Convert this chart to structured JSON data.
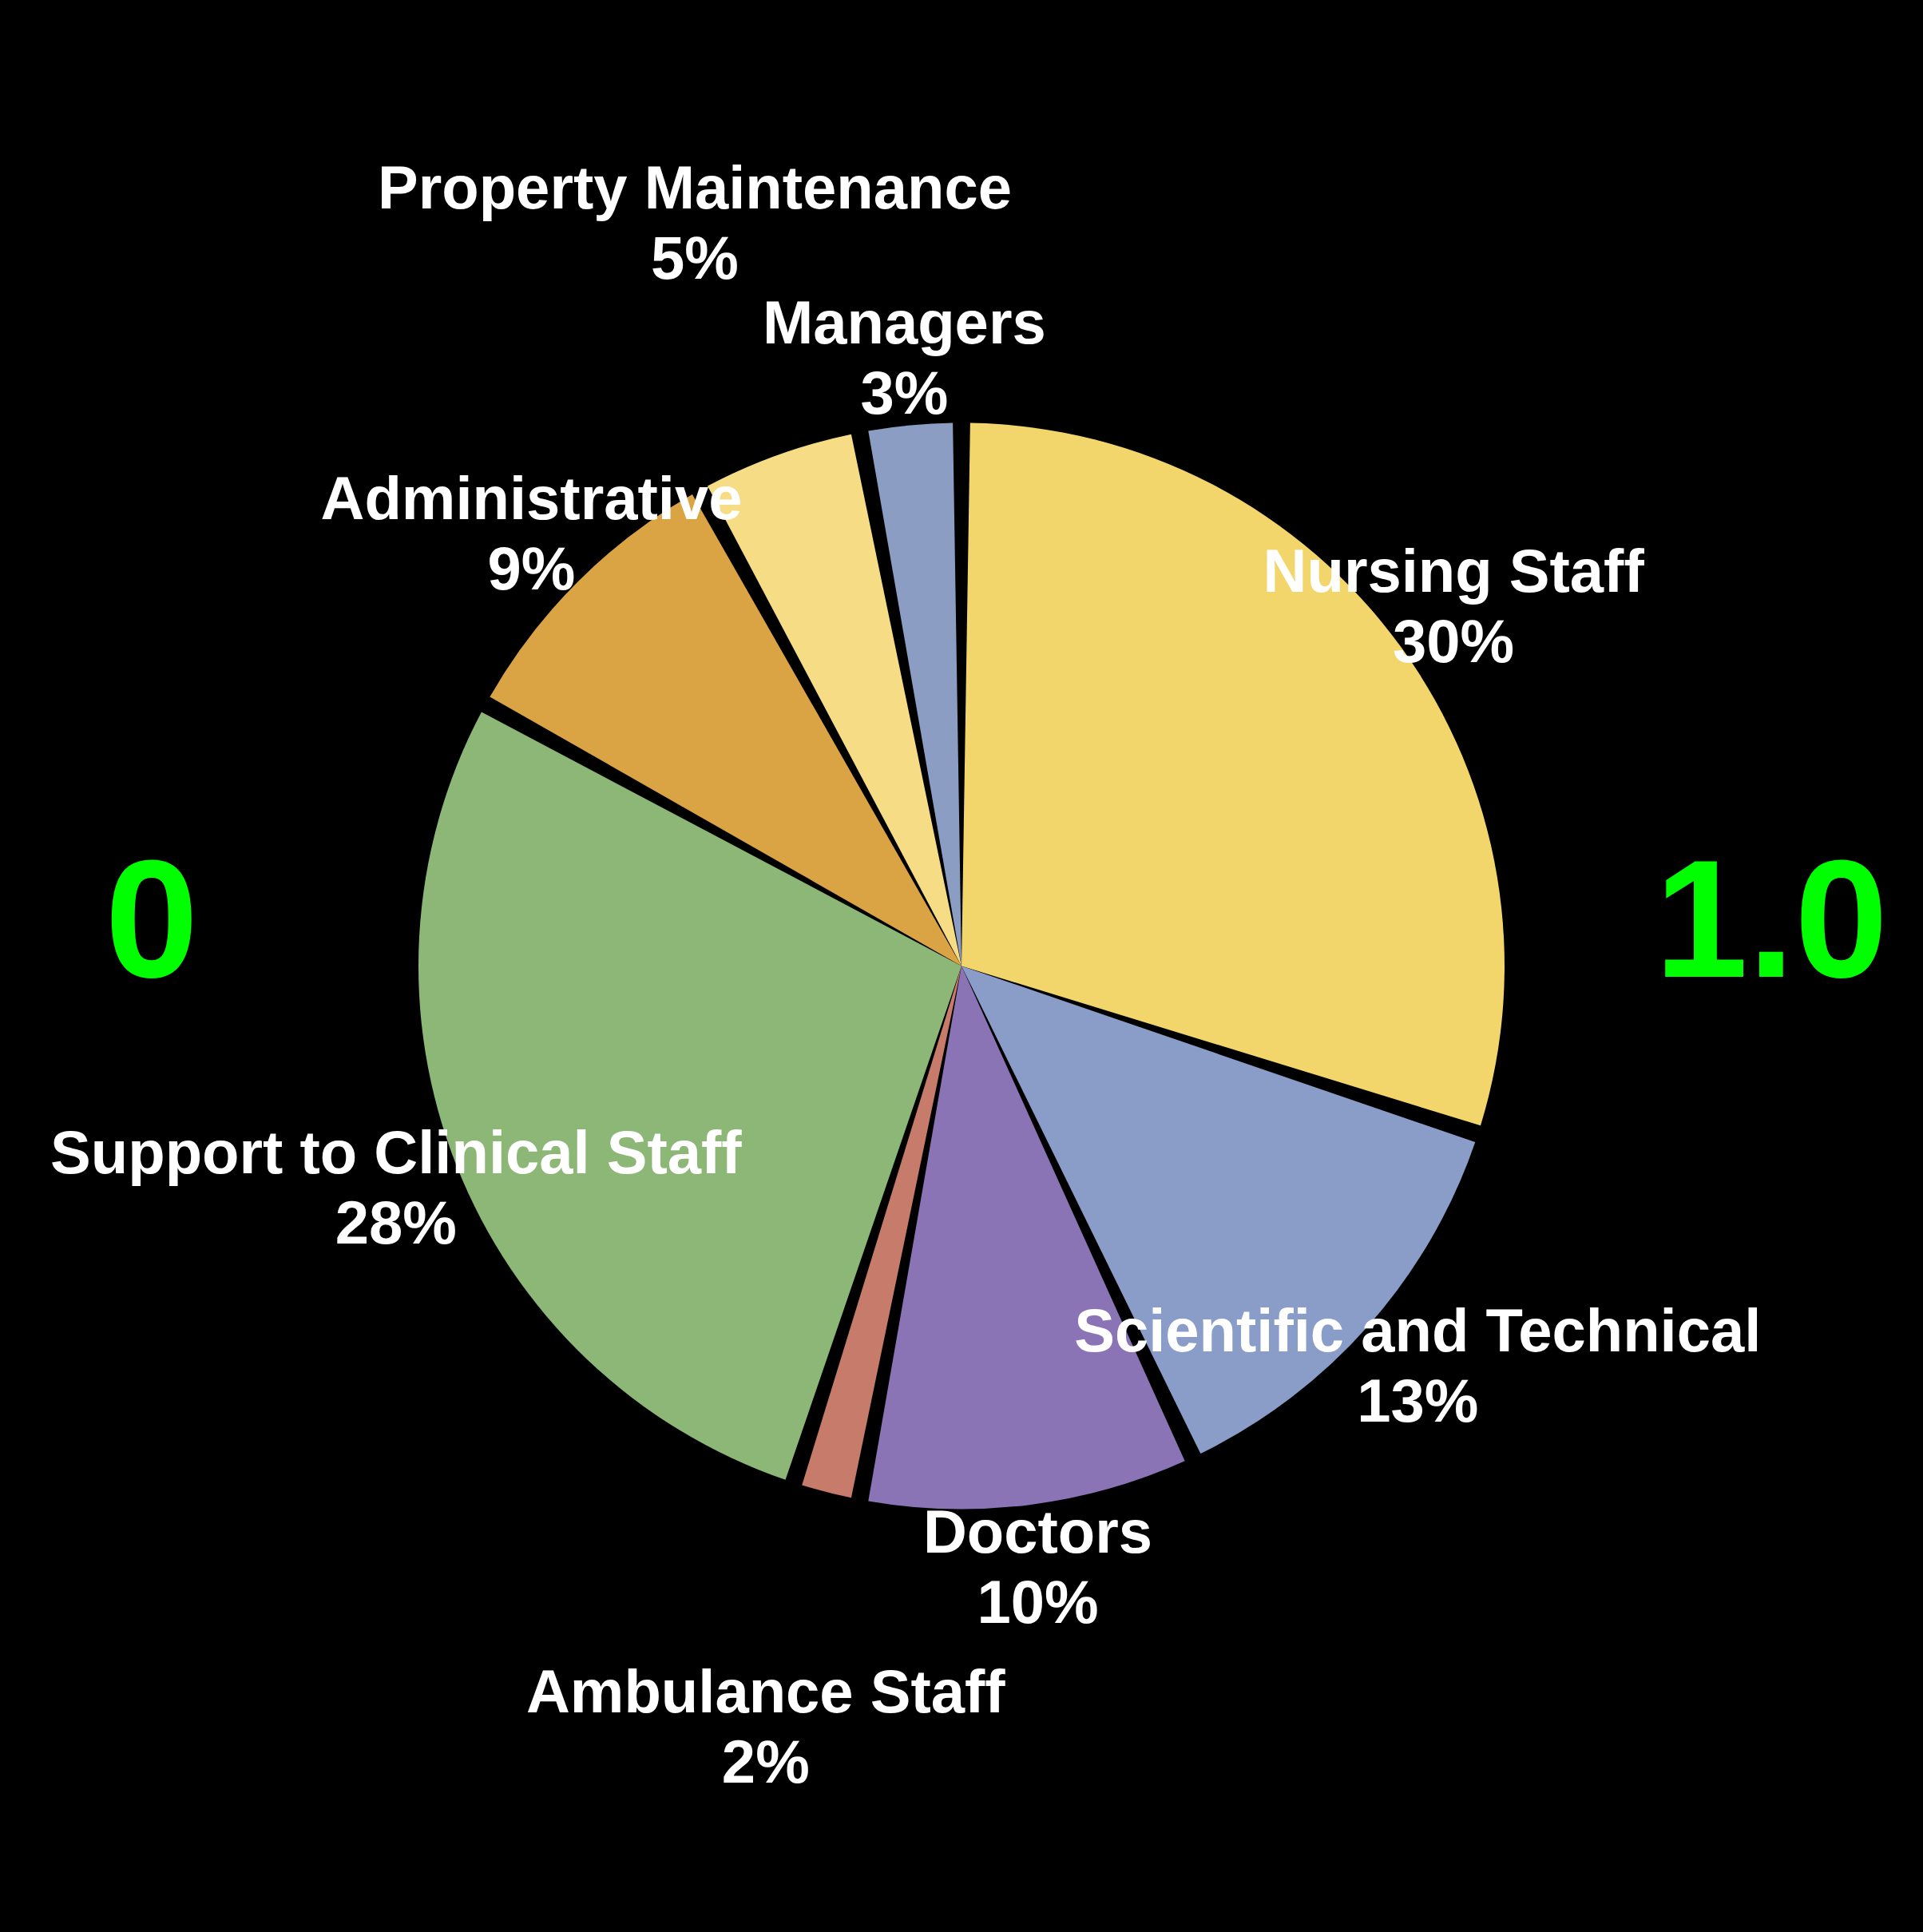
{
  "chart_data": {
    "type": "pie",
    "categories": [
      "Nursing Staff",
      "Scientific and Technical",
      "Doctors",
      "Ambulance Staff",
      "Support to Clinical Staff",
      "Administrative",
      "Property Maintenance",
      "Managers"
    ],
    "values": [
      30,
      13,
      10,
      2,
      28,
      9,
      5,
      3
    ],
    "colors": [
      "#f2d56b",
      "#8a9cc8",
      "#8b74b6",
      "#c77b6b",
      "#8db776",
      "#daa343",
      "#f5dc85",
      "#8b9dc3"
    ],
    "value_labels": [
      "30%",
      "13%",
      "10%",
      "2%",
      "28%",
      "9%",
      "5%",
      "3%"
    ],
    "annotations": [
      "0",
      "1.0"
    ]
  }
}
